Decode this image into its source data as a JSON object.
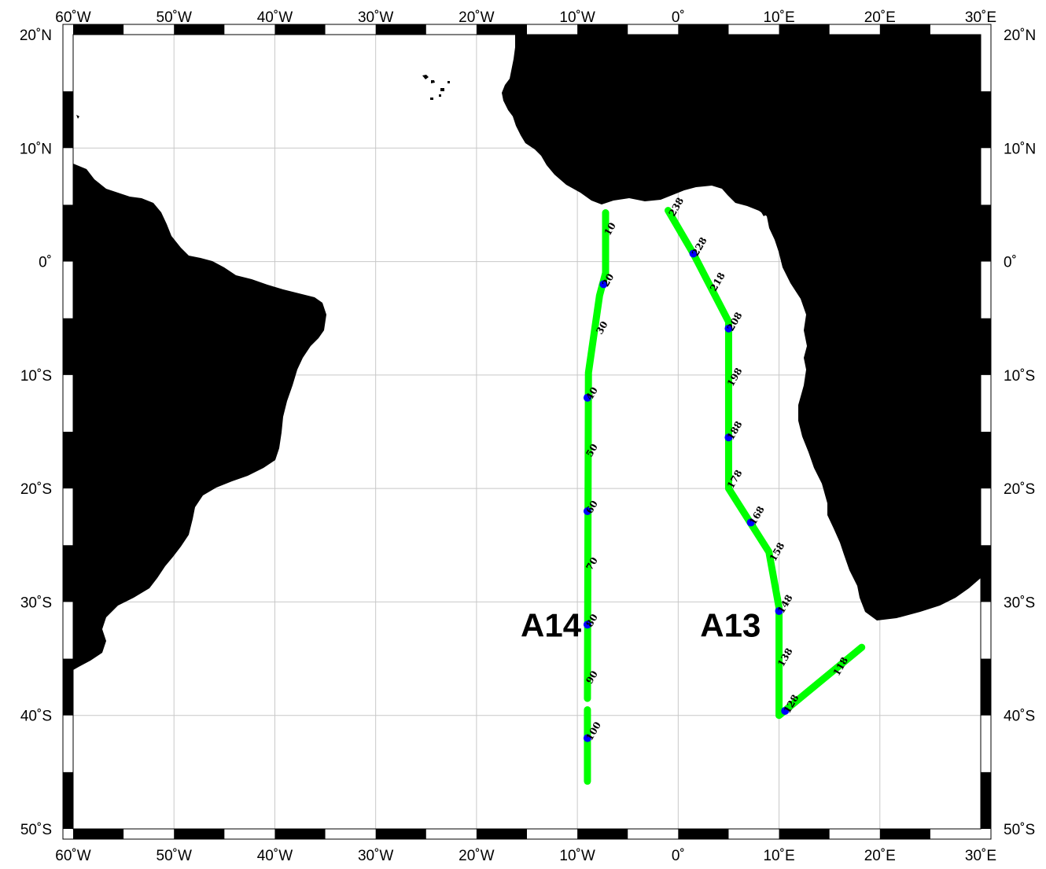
{
  "map": {
    "lon_range": [
      -60,
      30
    ],
    "lat_range": [
      -50,
      20
    ],
    "grid_on": true,
    "lon_ticks": [
      {
        "value": -60,
        "label": "60˚W"
      },
      {
        "value": -50,
        "label": "50˚W"
      },
      {
        "value": -40,
        "label": "40˚W"
      },
      {
        "value": -30,
        "label": "30˚W"
      },
      {
        "value": -20,
        "label": "20˚W"
      },
      {
        "value": -10,
        "label": "10˚W"
      },
      {
        "value": 0,
        "label": "0˚"
      },
      {
        "value": 10,
        "label": "10˚E"
      },
      {
        "value": 20,
        "label": "20˚E"
      },
      {
        "value": 30,
        "label": "30˚E"
      }
    ],
    "lat_ticks": [
      {
        "value": 20,
        "label": "20˚N"
      },
      {
        "value": 10,
        "label": "10˚N"
      },
      {
        "value": 0,
        "label": "0˚"
      },
      {
        "value": -10,
        "label": "10˚S"
      },
      {
        "value": -20,
        "label": "20˚S"
      },
      {
        "value": -30,
        "label": "30˚S"
      },
      {
        "value": -40,
        "label": "40˚S"
      },
      {
        "value": -50,
        "label": "50˚S"
      }
    ],
    "colors": {
      "land": "#000000",
      "ocean": "#ffffff",
      "track": "#00ff00",
      "labeled_station": "#0000ff",
      "grid": "#c8c8c8"
    }
  },
  "sections": [
    {
      "name": "A14",
      "label_anchor": {
        "lon": -9.3,
        "lat": -32
      },
      "track": [
        {
          "lon": -7.2,
          "lat": 4.3
        },
        {
          "lon": -7.2,
          "lat": -1.0
        },
        {
          "lon": -7.8,
          "lat": -3.0
        },
        {
          "lon": -8.9,
          "lat": -9.8
        },
        {
          "lon": -9.0,
          "lat": -38.5
        }
      ],
      "track2": [
        {
          "lon": -9.0,
          "lat": -39.5
        },
        {
          "lon": -9.0,
          "lat": -45.8
        }
      ],
      "stations": [
        {
          "label": "10",
          "lon": -7.2,
          "lat": 2.5,
          "dot": false
        },
        {
          "label": "20",
          "lon": -7.4,
          "lat": -2.0,
          "dot": true
        },
        {
          "label": "30",
          "lon": -8.0,
          "lat": -6.2,
          "dot": false
        },
        {
          "label": "40",
          "lon": -9.0,
          "lat": -12.0,
          "dot": true
        },
        {
          "label": "50",
          "lon": -9.0,
          "lat": -17.0,
          "dot": false
        },
        {
          "label": "60",
          "lon": -9.0,
          "lat": -22.0,
          "dot": true
        },
        {
          "label": "70",
          "lon": -9.0,
          "lat": -27.0,
          "dot": false
        },
        {
          "label": "80",
          "lon": -9.0,
          "lat": -32.0,
          "dot": true
        },
        {
          "label": "90",
          "lon": -9.0,
          "lat": -37.0,
          "dot": false
        },
        {
          "label": "100",
          "lon": -9.0,
          "lat": -42.0,
          "dot": true
        }
      ]
    },
    {
      "name": "A13",
      "label_anchor": {
        "lon": 8.5,
        "lat": -32
      },
      "track": [
        {
          "lon": 18.2,
          "lat": -34.0
        },
        {
          "lon": 10.0,
          "lat": -40.0
        },
        {
          "lon": 10.0,
          "lat": -30.5
        },
        {
          "lon": 9.0,
          "lat": -25.6
        },
        {
          "lon": 5.0,
          "lat": -20.0
        },
        {
          "lon": 5.0,
          "lat": -5.3
        },
        {
          "lon": 1.5,
          "lat": 0.7
        },
        {
          "lon": -1.0,
          "lat": 4.5
        }
      ],
      "stations": [
        {
          "label": "118",
          "lon": 15.5,
          "lat": -36.3,
          "dot": false
        },
        {
          "label": "128",
          "lon": 10.6,
          "lat": -39.6,
          "dot": true
        },
        {
          "label": "138",
          "lon": 10.0,
          "lat": -35.5,
          "dot": false
        },
        {
          "label": "148",
          "lon": 10.0,
          "lat": -30.8,
          "dot": true
        },
        {
          "label": "158",
          "lon": 9.2,
          "lat": -26.2,
          "dot": false
        },
        {
          "label": "168",
          "lon": 7.2,
          "lat": -23.0,
          "dot": true
        },
        {
          "label": "178",
          "lon": 5.0,
          "lat": -19.8,
          "dot": false
        },
        {
          "label": "188",
          "lon": 5.0,
          "lat": -15.5,
          "dot": true
        },
        {
          "label": "198",
          "lon": 5.0,
          "lat": -10.8,
          "dot": false
        },
        {
          "label": "208",
          "lon": 5.0,
          "lat": -5.9,
          "dot": true
        },
        {
          "label": "218",
          "lon": 3.3,
          "lat": -2.4,
          "dot": false
        },
        {
          "label": "228",
          "lon": 1.5,
          "lat": 0.7,
          "dot": true
        },
        {
          "label": "238",
          "lon": -0.8,
          "lat": 4.2,
          "dot": false
        }
      ]
    }
  ]
}
